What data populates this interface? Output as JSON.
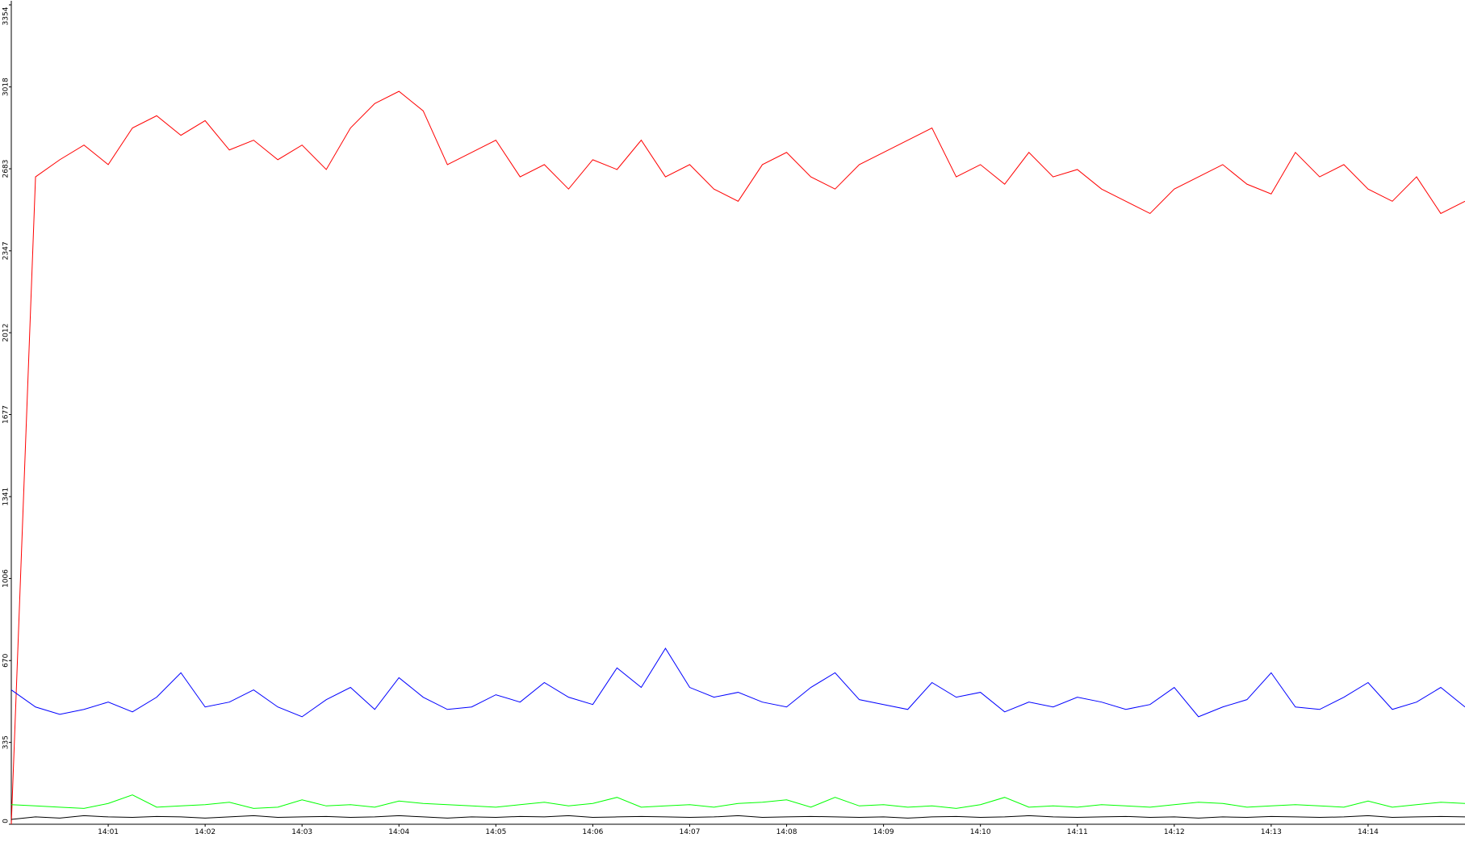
{
  "chart_data": {
    "type": "line",
    "categories": [
      null,
      null,
      null,
      null,
      "14:01",
      null,
      null,
      null,
      "14:02",
      null,
      null,
      null,
      "14:03",
      null,
      null,
      null,
      "14:04",
      null,
      null,
      null,
      "14:05",
      null,
      null,
      null,
      "14:06",
      null,
      null,
      null,
      "14:07",
      null,
      null,
      null,
      "14:08",
      null,
      null,
      null,
      "14:09",
      null,
      null,
      null,
      "14:10",
      null,
      null,
      null,
      "14:11",
      null,
      null,
      null,
      "14:12",
      null,
      null,
      null,
      "14:13",
      null,
      null,
      null,
      "14:14",
      null,
      null,
      null,
      null
    ],
    "series": [
      {
        "color": "#ff0000",
        "values": [
          0,
          2650,
          2720,
          2780,
          2700,
          2850,
          2900,
          2820,
          2880,
          2760,
          2800,
          2720,
          2780,
          2680,
          2850,
          2950,
          3000,
          2920,
          2700,
          2750,
          2800,
          2650,
          2700,
          2600,
          2720,
          2680,
          2800,
          2650,
          2700,
          2600,
          2550,
          2700,
          2750,
          2650,
          2600,
          2700,
          2750,
          2800,
          2850,
          2650,
          2700,
          2620,
          2750,
          2650,
          2680,
          2600,
          2550,
          2500,
          2600,
          2650,
          2700,
          2620,
          2580,
          2750,
          2650,
          2700,
          2600,
          2550,
          2650,
          2500,
          2550
        ]
      },
      {
        "color": "#0000ff",
        "values": [
          550,
          480,
          450,
          470,
          500,
          460,
          520,
          620,
          480,
          500,
          550,
          480,
          440,
          510,
          560,
          470,
          600,
          520,
          470,
          480,
          530,
          500,
          580,
          520,
          490,
          640,
          560,
          720,
          560,
          520,
          540,
          500,
          480,
          560,
          620,
          510,
          490,
          470,
          580,
          520,
          540,
          460,
          500,
          480,
          520,
          500,
          470,
          490,
          560,
          440,
          480,
          510,
          620,
          480,
          470,
          520,
          580,
          470,
          500,
          560,
          480
        ]
      },
      {
        "color": "#00ff00",
        "values": [
          80,
          75,
          70,
          65,
          85,
          120,
          70,
          75,
          80,
          90,
          65,
          70,
          100,
          75,
          80,
          70,
          95,
          85,
          80,
          75,
          70,
          80,
          90,
          75,
          85,
          110,
          70,
          75,
          80,
          70,
          85,
          90,
          100,
          70,
          110,
          75,
          80,
          70,
          75,
          65,
          80,
          110,
          70,
          75,
          70,
          80,
          75,
          70,
          80,
          90,
          85,
          70,
          75,
          80,
          75,
          70,
          95,
          70,
          80,
          90,
          85
        ]
      },
      {
        "color": "#000000",
        "values": [
          20,
          30,
          25,
          35,
          30,
          28,
          32,
          30,
          25,
          30,
          35,
          28,
          30,
          32,
          28,
          30,
          35,
          30,
          25,
          30,
          28,
          32,
          30,
          35,
          28,
          30,
          32,
          30,
          28,
          30,
          35,
          28,
          30,
          32,
          30,
          28,
          30,
          25,
          30,
          32,
          28,
          30,
          35,
          30,
          28,
          30,
          32,
          28,
          30,
          25,
          30,
          28,
          32,
          30,
          28,
          30,
          35,
          28,
          30,
          32,
          30
        ]
      }
    ],
    "ylim": [
      0,
      3354
    ],
    "yticks": [
      0,
      335,
      670,
      1006,
      1341,
      1677,
      2012,
      2347,
      2683,
      3018,
      3354
    ],
    "grid": false
  }
}
